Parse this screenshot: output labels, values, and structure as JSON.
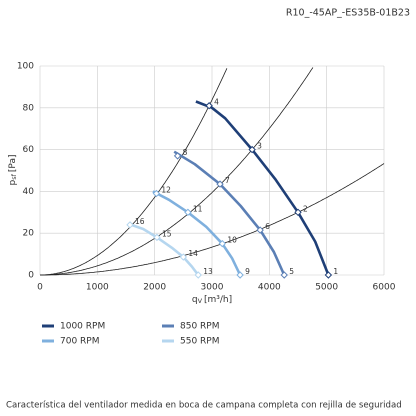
{
  "chart_data": {
    "type": "line",
    "title": "R10_-45AP_-ES35B-01B23",
    "caption": "Característica del ventilador medida en boca de campana completa con rejilla de seguridad",
    "xlabel": {
      "main": "q",
      "sub": "V",
      "unit": "[m³/h]"
    },
    "ylabel": {
      "main": "p",
      "sub": "sf",
      "unit": "[Pa]"
    },
    "xlim": [
      0,
      6000
    ],
    "xticks": [
      0,
      1000,
      2000,
      3000,
      4000,
      5000,
      6000
    ],
    "ylim": [
      0,
      100
    ],
    "yticks": [
      0,
      20,
      40,
      60,
      80,
      100
    ],
    "grid": true,
    "series": [
      {
        "name": "1000 RPM",
        "color": "#1f3f77",
        "x": [
          2720,
          3000,
          3230,
          3700,
          4100,
          4500,
          4800,
          5030
        ],
        "values": [
          83,
          80,
          75,
          60,
          46,
          30,
          16,
          0
        ],
        "points": [
          {
            "label": "4",
            "x": 2950,
            "y": 81
          },
          {
            "label": "3",
            "x": 3700,
            "y": 60
          },
          {
            "label": "2",
            "x": 4500,
            "y": 30
          },
          {
            "label": "1",
            "x": 5030,
            "y": 0
          }
        ]
      },
      {
        "name": "700 RPM",
        "color": "#7fb0de",
        "x": [
          1970,
          2250,
          2580,
          2900,
          3180,
          3350,
          3490
        ],
        "values": [
          40,
          36,
          30,
          23,
          15,
          8,
          0
        ],
        "points": [
          {
            "label": "12",
            "x": 2030,
            "y": 39
          },
          {
            "label": "11",
            "x": 2580,
            "y": 30
          },
          {
            "label": "10",
            "x": 3180,
            "y": 15
          },
          {
            "label": "9",
            "x": 3490,
            "y": 0
          }
        ]
      },
      {
        "name": "850 RPM",
        "color": "#5b7fb5",
        "x": [
          2340,
          2700,
          3140,
          3500,
          3840,
          4080,
          4260
        ],
        "values": [
          59,
          53,
          43.5,
          33,
          21.5,
          11,
          0
        ],
        "points": [
          {
            "label": "8",
            "x": 2400,
            "y": 57
          },
          {
            "label": "7",
            "x": 3140,
            "y": 43.5
          },
          {
            "label": "6",
            "x": 3840,
            "y": 21.5
          },
          {
            "label": "5",
            "x": 4260,
            "y": 0
          }
        ]
      },
      {
        "name": "550 RPM",
        "color": "#b5d6ef",
        "x": [
          1540,
          1800,
          2040,
          2300,
          2500,
          2650,
          2760
        ],
        "values": [
          24.5,
          22,
          18,
          13,
          8.6,
          4,
          0
        ],
        "points": [
          {
            "label": "16",
            "x": 1570,
            "y": 24
          },
          {
            "label": "15",
            "x": 2040,
            "y": 18
          },
          {
            "label": "14",
            "x": 2500,
            "y": 8.6
          },
          {
            "label": "13",
            "x": 2760,
            "y": 0
          }
        ]
      }
    ]
  }
}
